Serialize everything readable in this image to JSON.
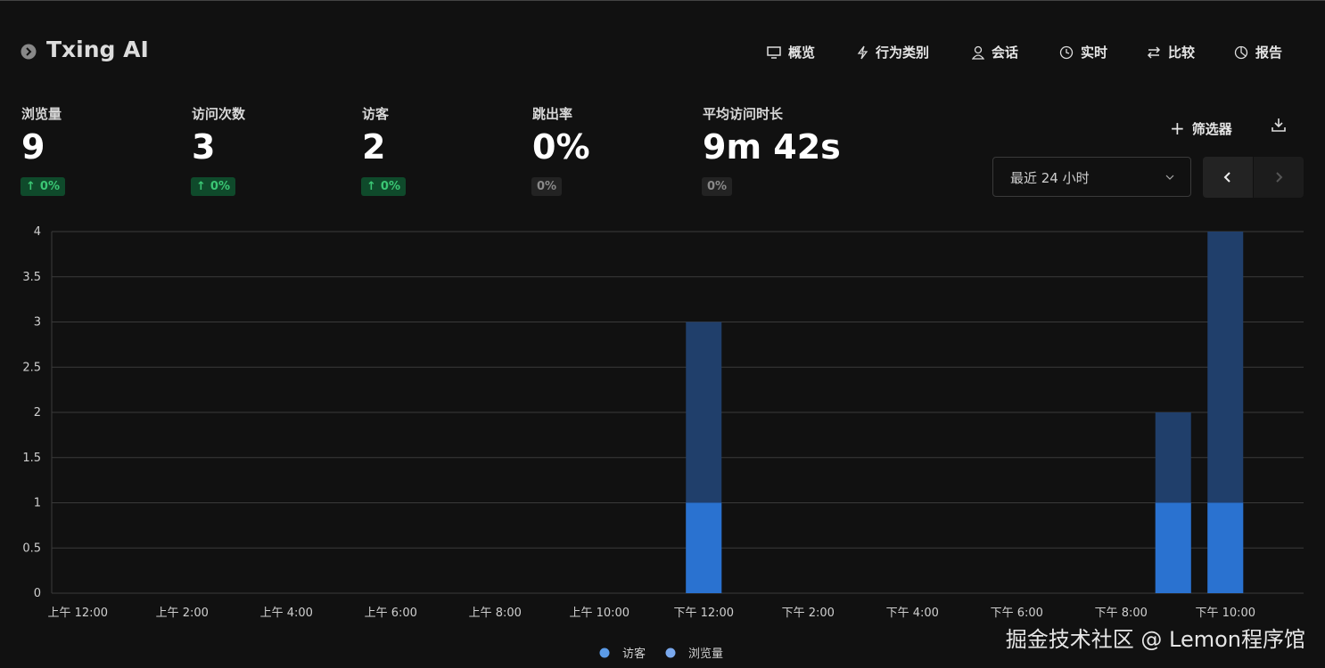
{
  "header": {
    "title": "Txing AI",
    "nav": [
      "概览",
      "行为类别",
      "会话",
      "实时",
      "比较",
      "报告"
    ]
  },
  "metrics": [
    {
      "label": "浏览量",
      "value": "9",
      "change": "0%"
    },
    {
      "label": "访问次数",
      "value": "3",
      "change": "0%"
    },
    {
      "label": "访客",
      "value": "2",
      "change": "0%"
    },
    {
      "label": "跳出率",
      "value": "0%",
      "change": "0%"
    },
    {
      "label": "平均访问时长",
      "value": "9m 42s",
      "change": "0%"
    }
  ],
  "controls": {
    "filter": "筛选器",
    "range": "最近 24 小时"
  },
  "chart_data": {
    "type": "bar",
    "categories": [
      "上午 12:00",
      null,
      "上午 2:00",
      null,
      "上午 4:00",
      null,
      "上午 6:00",
      null,
      "上午 8:00",
      null,
      "上午 10:00",
      null,
      "下午 12:00",
      null,
      "下午 2:00",
      null,
      "下午 4:00",
      null,
      "下午 6:00",
      null,
      "下午 8:00",
      null,
      "下午 10:00",
      null
    ],
    "series": [
      {
        "name": "访客",
        "color": "#2a72d0",
        "values": [
          0,
          0,
          0,
          0,
          0,
          0,
          0,
          0,
          0,
          0,
          0,
          0,
          1,
          0,
          0,
          0,
          0,
          0,
          0,
          0,
          0,
          1,
          1,
          0
        ]
      },
      {
        "name": "浏览量",
        "color": "#203f6b",
        "values": [
          0,
          0,
          0,
          0,
          0,
          0,
          0,
          0,
          0,
          0,
          0,
          0,
          3,
          0,
          0,
          0,
          0,
          0,
          0,
          0,
          0,
          2,
          4,
          0
        ]
      }
    ],
    "ylim": [
      0,
      4
    ],
    "yticks": [
      0,
      0.5,
      1,
      1.5,
      2,
      2.5,
      3,
      3.5,
      4
    ],
    "grid": true
  },
  "watermark": "掘金技术社区 @ Lemon程序馆"
}
